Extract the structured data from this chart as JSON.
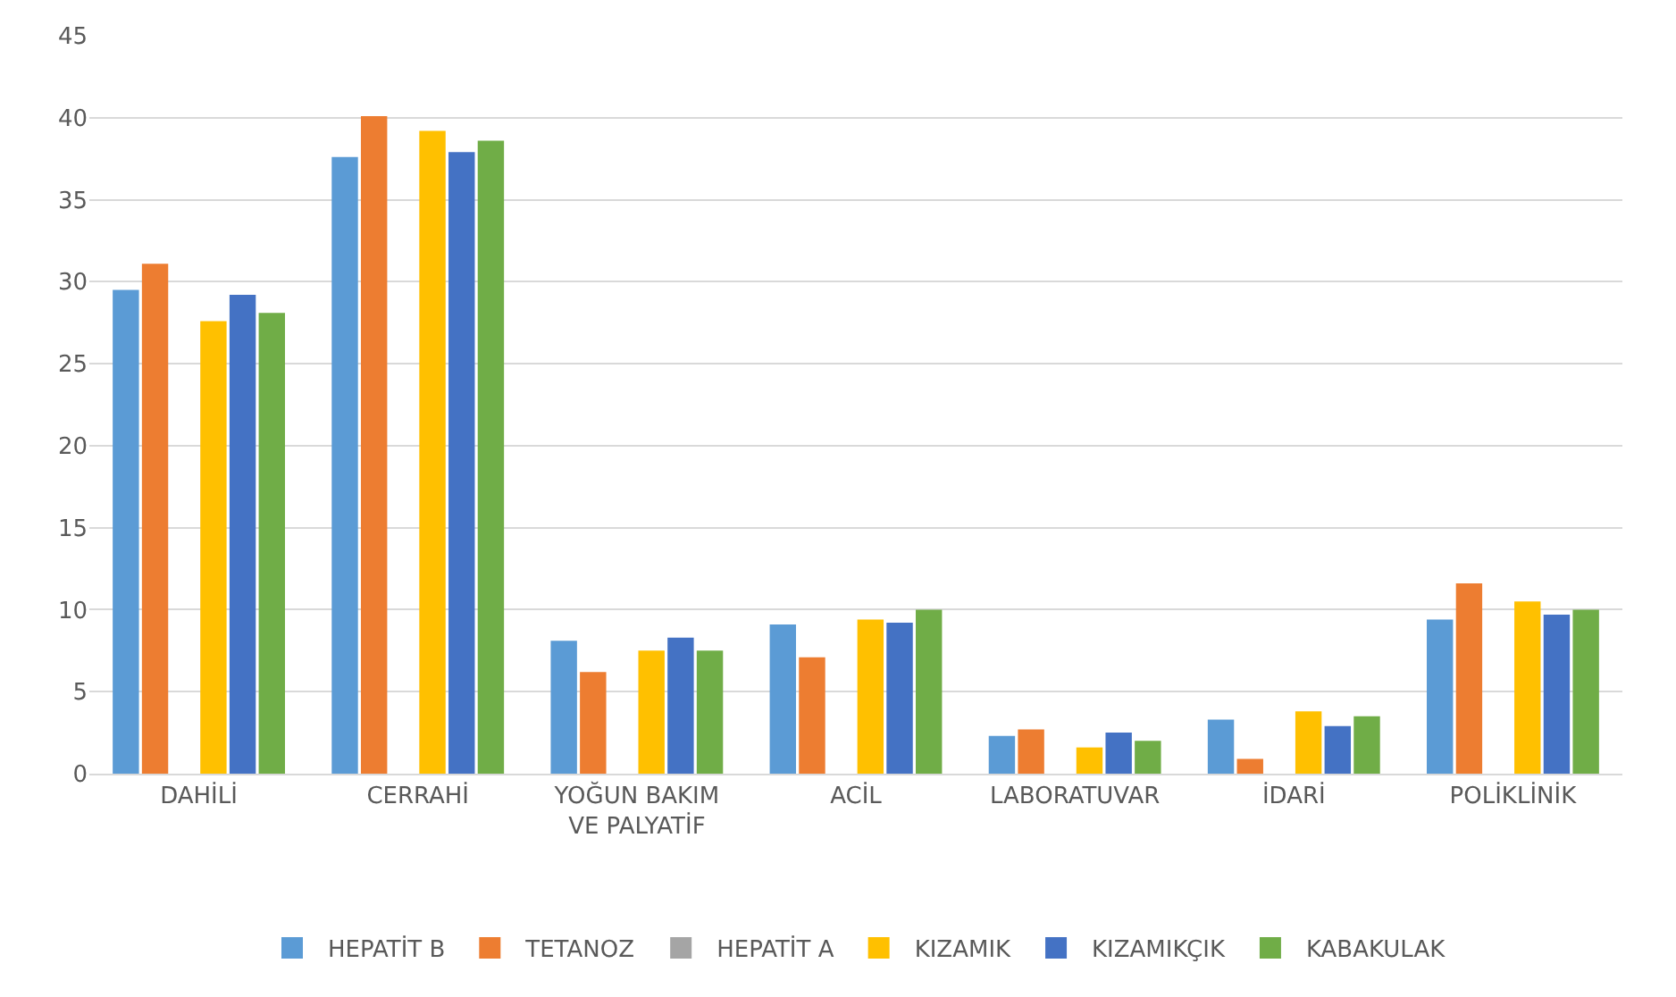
{
  "chart_data": {
    "type": "bar",
    "categories": [
      "DAHİLİ",
      "CERRAHİ",
      "YOĞUN BAKIM VE PALYATİF",
      "ACİL",
      "LABORATUVAR",
      "İDARİ",
      "POLİKLİNİK"
    ],
    "series": [
      {
        "name": "HEPATİT B",
        "color": "#5b9bd5",
        "values": [
          29.5,
          37.6,
          8.1,
          9.1,
          2.3,
          3.3,
          9.4
        ]
      },
      {
        "name": "TETANOZ",
        "color": "#ed7d31",
        "values": [
          31.1,
          40.1,
          6.2,
          7.1,
          2.7,
          0.9,
          11.6
        ]
      },
      {
        "name": "HEPATİT A",
        "color": "#a5a5a5",
        "values": [
          null,
          null,
          null,
          null,
          null,
          null,
          null
        ]
      },
      {
        "name": "KIZAMIK",
        "color": "#ffc000",
        "values": [
          27.6,
          39.2,
          7.5,
          9.4,
          1.6,
          3.8,
          10.5
        ]
      },
      {
        "name": "KIZAMIKÇIK",
        "color": "#4472c4",
        "values": [
          29.2,
          37.9,
          8.3,
          9.2,
          2.5,
          2.9,
          9.7
        ]
      },
      {
        "name": "KABAKULAK",
        "color": "#70ad47",
        "values": [
          28.1,
          38.6,
          7.5,
          10.0,
          2.0,
          3.5,
          10.0
        ]
      }
    ],
    "ylim": [
      0,
      45
    ],
    "yticks": [
      0,
      5,
      10,
      15,
      20,
      25,
      30,
      35,
      40,
      45
    ],
    "grid": "y",
    "legend": "bottom"
  }
}
